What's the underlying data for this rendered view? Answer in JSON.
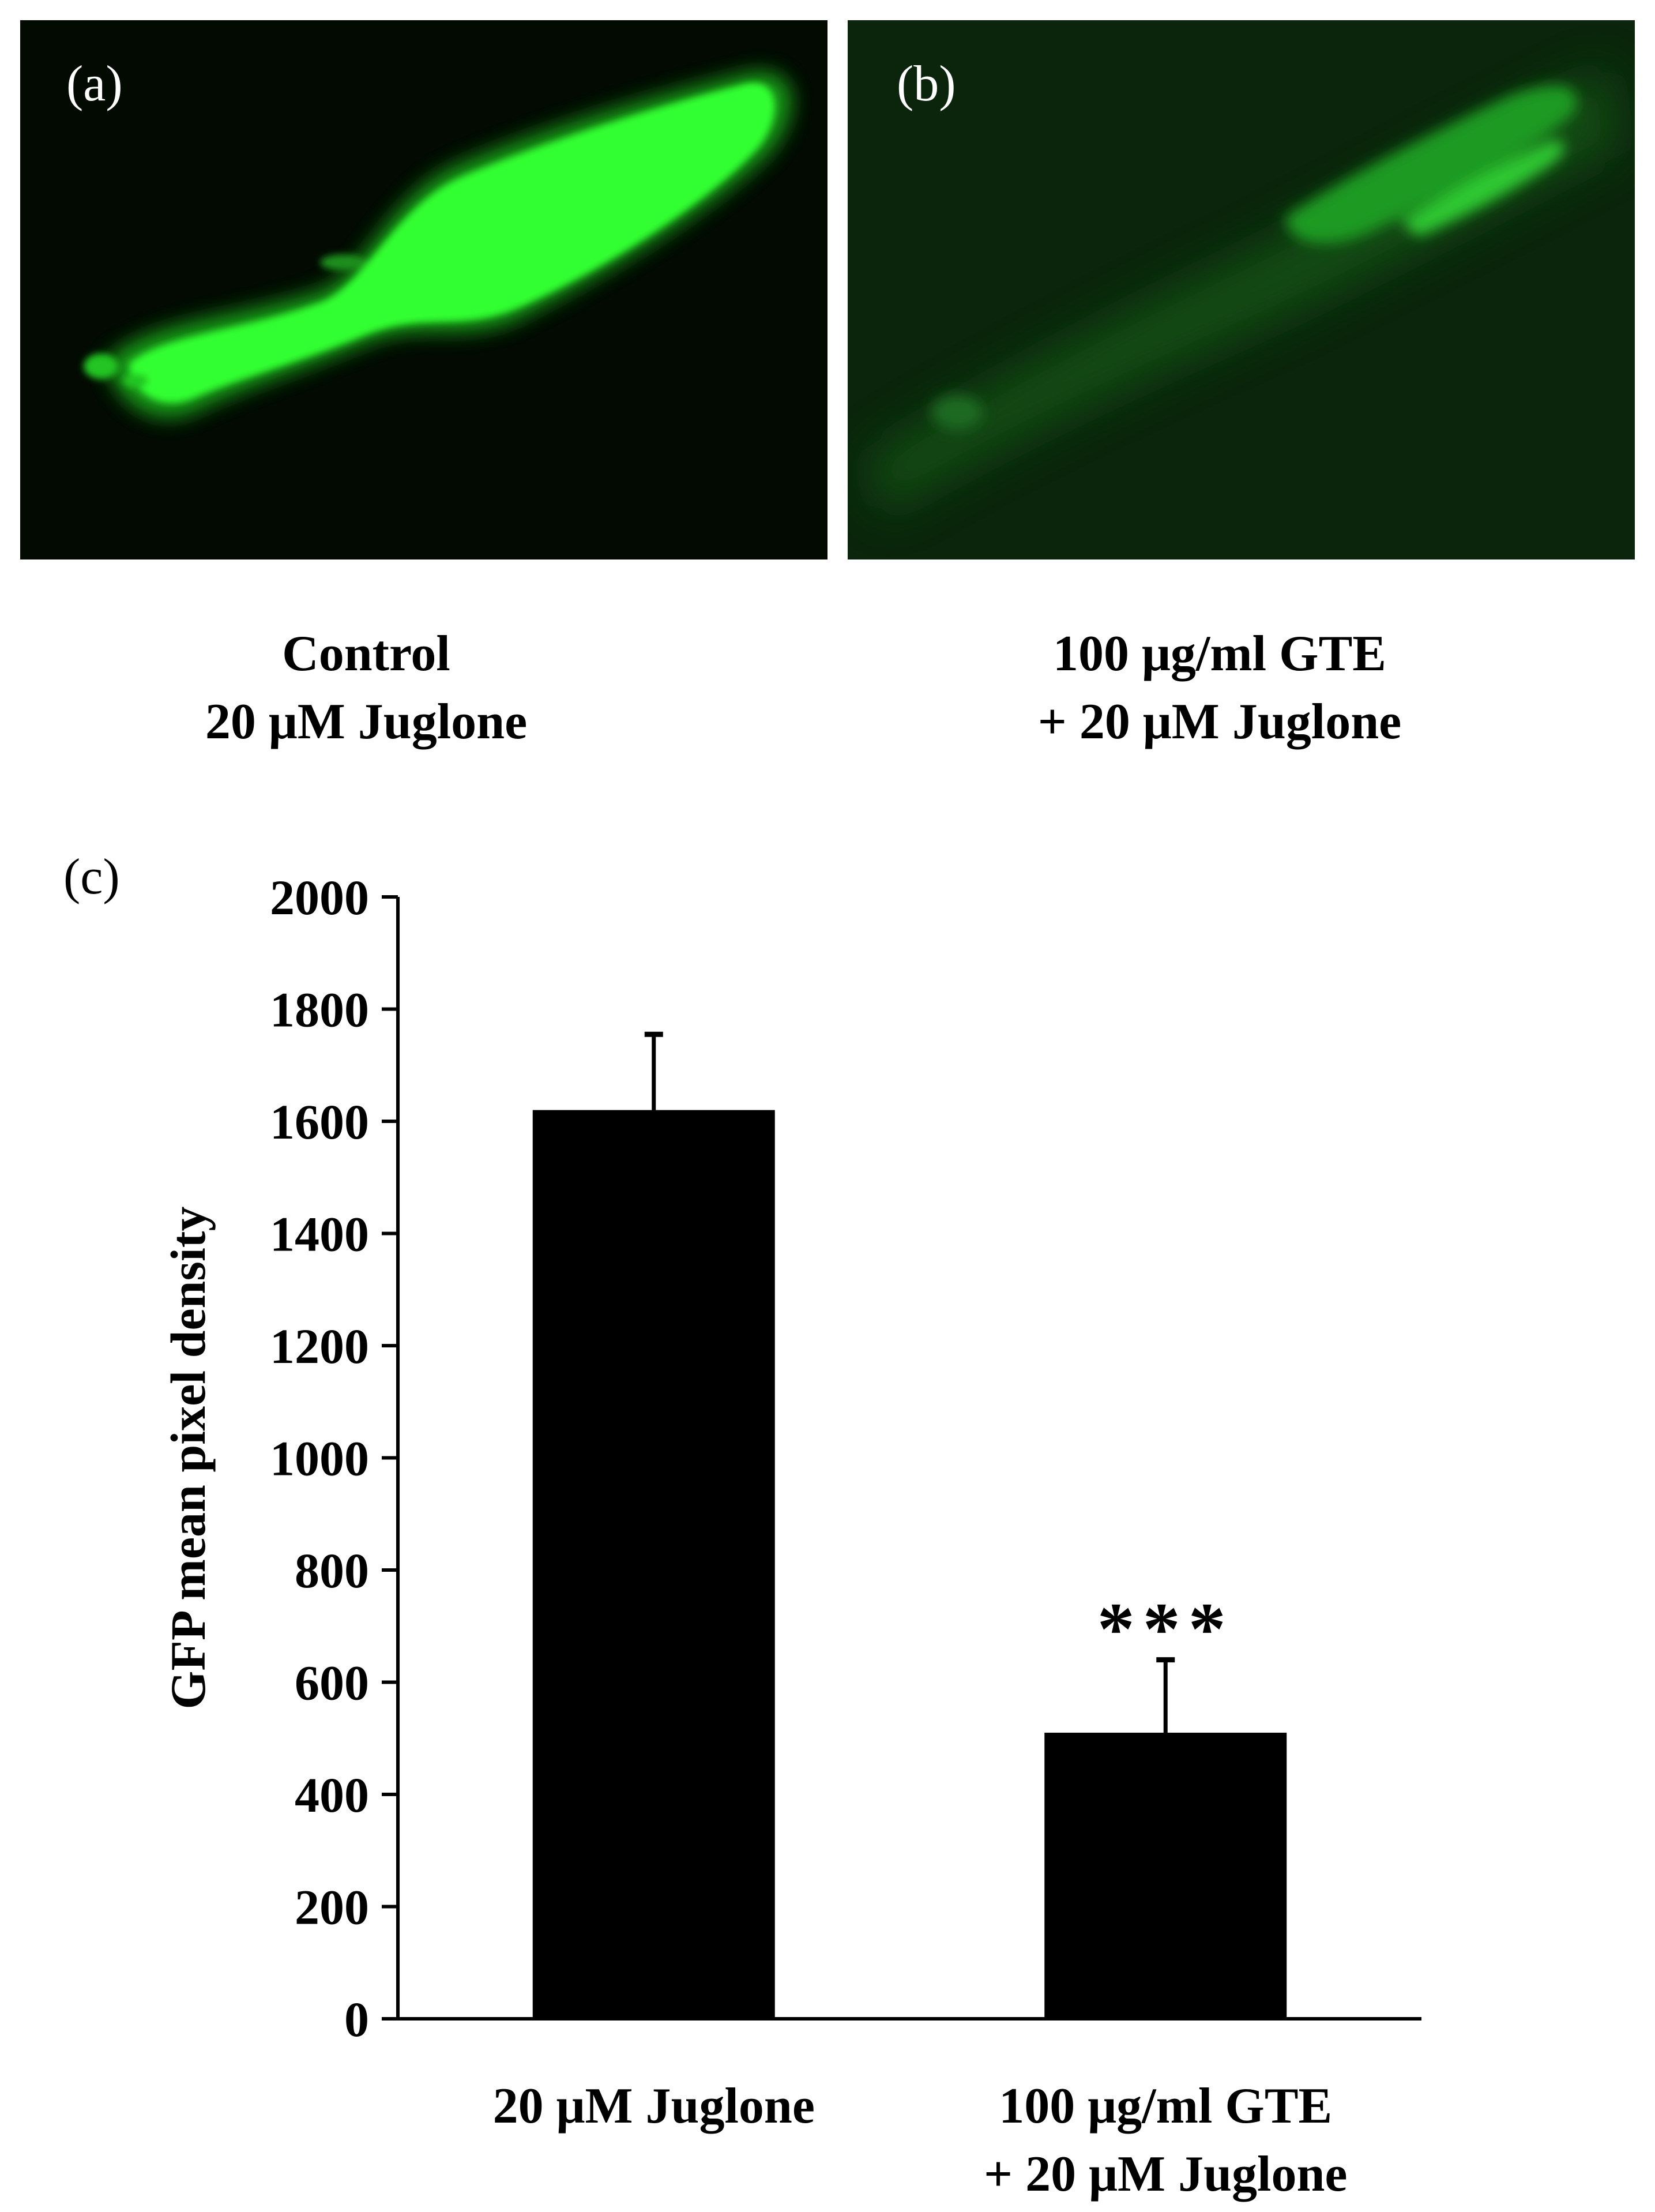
{
  "panels": [
    {
      "letter": "(a)",
      "caption_lines": [
        "Control",
        "20 μM Juglone"
      ]
    },
    {
      "letter": "(b)",
      "caption_lines": [
        "100 μg/ml GTE",
        "+ 20 μM Juglone"
      ]
    }
  ],
  "colors": {
    "gfp": "#33ff33",
    "background": "#020a02",
    "bar": "#000000"
  },
  "chart_data": {
    "panel_label": "(c)",
    "type": "bar",
    "categories": [
      [
        "20 μM Juglone"
      ],
      [
        "100 μg/ml GTE",
        "+ 20 μM Juglone"
      ]
    ],
    "values": [
      1620,
      510
    ],
    "errors": [
      135,
      130
    ],
    "annotations": [
      "",
      "***"
    ],
    "ylabel": "GFP mean pixel density",
    "ylim": [
      0,
      2000
    ],
    "yticks": [
      0,
      200,
      400,
      600,
      800,
      1000,
      1200,
      1400,
      1600,
      1800,
      2000
    ],
    "grid": false
  }
}
